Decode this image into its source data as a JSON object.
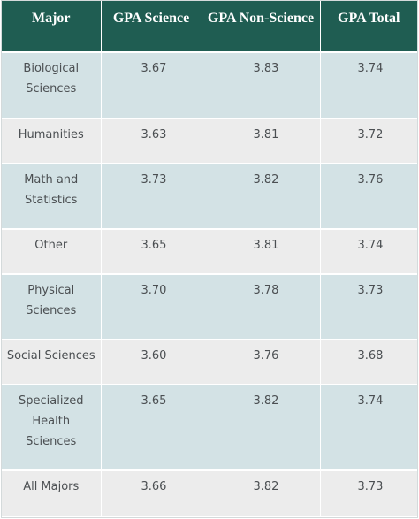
{
  "table": {
    "headers": [
      "Major",
      "GPA Science",
      "GPA Non-Science",
      "GPA Total"
    ],
    "rows": [
      {
        "major": "Biological Sciences",
        "science": "3.67",
        "non_science": "3.83",
        "total": "3.74"
      },
      {
        "major": "Humanities",
        "science": "3.63",
        "non_science": "3.81",
        "total": "3.72"
      },
      {
        "major": "Math and Statistics",
        "science": "3.73",
        "non_science": "3.82",
        "total": "3.76"
      },
      {
        "major": "Other",
        "science": "3.65",
        "non_science": "3.81",
        "total": "3.74"
      },
      {
        "major": "Physical Sciences",
        "science": "3.70",
        "non_science": "3.78",
        "total": "3.73"
      },
      {
        "major": "Social Sciences",
        "science": "3.60",
        "non_science": "3.76",
        "total": "3.68"
      },
      {
        "major": "Specialized Health Sciences",
        "science": "3.65",
        "non_science": "3.82",
        "total": "3.74"
      },
      {
        "major": "All Majors",
        "science": "3.66",
        "non_science": "3.82",
        "total": "3.73"
      }
    ]
  },
  "colors": {
    "header_bg": "#1f5d52",
    "header_text": "#ffffff",
    "row_blue": "#d3e2e5",
    "row_gray": "#ececec",
    "body_text": "#4b4f52"
  }
}
